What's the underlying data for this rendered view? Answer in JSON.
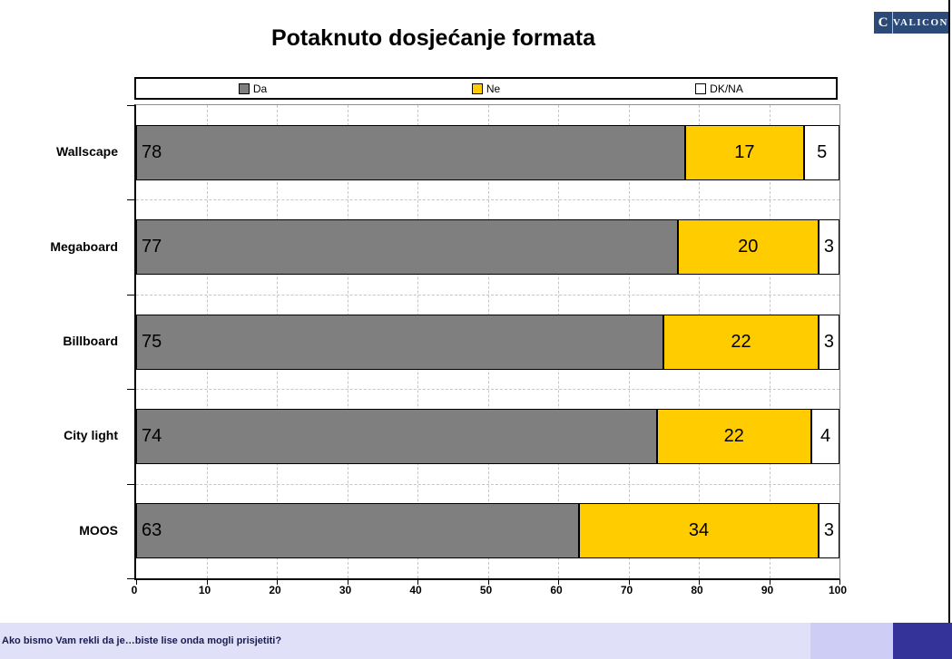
{
  "page": {
    "title": "Potaknuto dosjećanje formata"
  },
  "logo": {
    "icon": "C",
    "text": "VALICON",
    "bg_color": "#2C4A77"
  },
  "chart_data": {
    "type": "bar",
    "stacked": true,
    "orientation": "horizontal",
    "title": "Potaknuto dosjećanje formata",
    "categories": [
      "Wallscape",
      "Megaboard",
      "Billboard",
      "City light",
      "MOOS"
    ],
    "series": [
      {
        "name": "Da",
        "color": "#7F7F7F",
        "values": [
          78,
          77,
          75,
          74,
          63
        ]
      },
      {
        "name": "Ne",
        "color": "#FFCC00",
        "values": [
          17,
          20,
          22,
          22,
          34
        ]
      },
      {
        "name": "DK/NA",
        "color": "#FFFFFF",
        "values": [
          5,
          3,
          3,
          4,
          3
        ]
      }
    ],
    "xlim": [
      0,
      100
    ],
    "x_ticks": [
      0,
      10,
      20,
      30,
      40,
      50,
      60,
      70,
      80,
      90,
      100
    ],
    "grid": "dashed",
    "legend_position": "top",
    "bar_border_color": "#000000",
    "gridline_color": "#c6c6c6"
  },
  "footer": {
    "text": "Ako bismo Vam rekli da je…biste lise onda mogli prisjetiti?"
  }
}
